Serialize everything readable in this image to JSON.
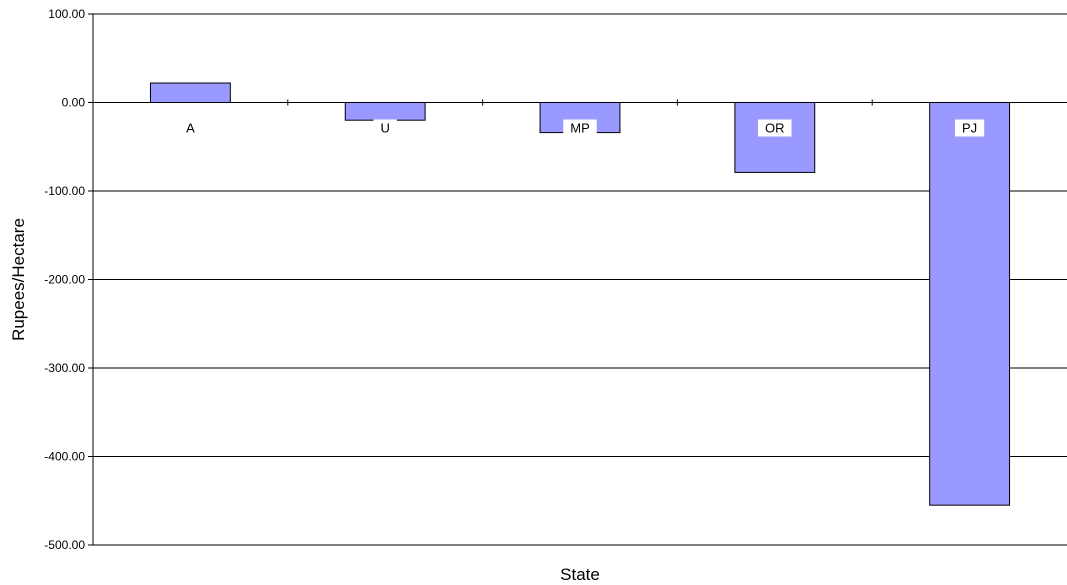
{
  "chart_data": {
    "type": "bar",
    "title": "",
    "xlabel": "State",
    "ylabel": "Rupees/Hectare",
    "categories": [
      "A",
      "U",
      "MP",
      "OR",
      "PJ"
    ],
    "values": [
      22,
      -20,
      -34,
      -79,
      -455
    ],
    "ylim": [
      -500,
      100
    ],
    "yticks": [
      -500,
      -400,
      -300,
      -200,
      -100,
      0,
      100
    ],
    "ytick_labels": [
      "-500.00",
      "-400.00",
      "-300.00",
      "-200.00",
      "-100.00",
      "0.00",
      "100.00"
    ],
    "grid": true,
    "legend": "none",
    "bar_color": "#9999ff",
    "bar_edge_color": "#000000"
  }
}
